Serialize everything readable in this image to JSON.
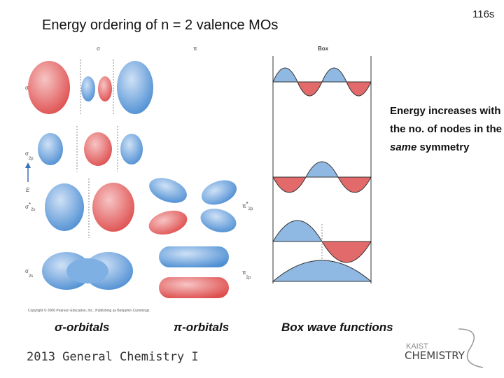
{
  "header": {
    "title": "Energy ordering of  n = 2 valence MOs",
    "page": "116s"
  },
  "figure": {
    "column_labels": [
      "σ",
      "π",
      "Box"
    ],
    "energy_axis": "E",
    "sigma_levels": [
      {
        "symbol": "σ",
        "star": "*",
        "sub": "2p"
      },
      {
        "symbol": "σ",
        "star": "",
        "sub": "2p"
      },
      {
        "symbol": "σ",
        "star": "*",
        "sub": "2s"
      },
      {
        "symbol": "σ",
        "star": "",
        "sub": "2s"
      }
    ],
    "pi_levels": [
      {
        "symbol": "π",
        "star": "*",
        "sub": "2p"
      },
      {
        "symbol": "π",
        "star": "",
        "sub": "2p"
      }
    ],
    "copyright": "Copyright © 2006 Pearson Education, Inc., Publishing as Benjamin Cummings"
  },
  "note": {
    "parts": [
      "Energy increases with the no. of nodes in the ",
      "same",
      " symmetry"
    ]
  },
  "captions": [
    "σ-orbitals",
    "π-orbitals",
    "Box wave functions"
  ],
  "footer": {
    "course": "2013 General Chemistry I",
    "logo_top": "KAIST",
    "logo_bottom": "CHEMISTRY"
  }
}
